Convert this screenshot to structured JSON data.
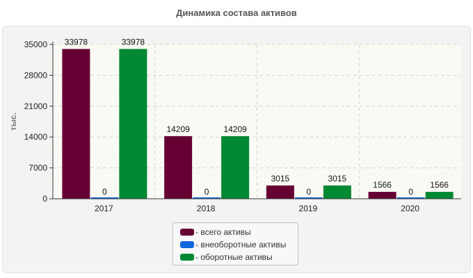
{
  "chart_data": {
    "type": "bar",
    "title": "Динамика состава активов",
    "xlabel": "",
    "ylabel": "тыс.",
    "categories": [
      "2017",
      "2018",
      "2019",
      "2020"
    ],
    "ylim": [
      0,
      35000
    ],
    "yticks": [
      0,
      7000,
      14000,
      21000,
      28000,
      35000
    ],
    "grid": true,
    "legend_position": "bottom",
    "series": [
      {
        "name": "- всего активы",
        "values": [
          33978,
          14209,
          3015,
          1566
        ],
        "color": "#660033"
      },
      {
        "name": "- внеоборотные активы",
        "values": [
          0,
          0,
          0,
          0
        ],
        "color": "#1166dd"
      },
      {
        "name": "- оборотные активы",
        "values": [
          33978,
          14209,
          3015,
          1566
        ],
        "color": "#008833"
      }
    ]
  }
}
